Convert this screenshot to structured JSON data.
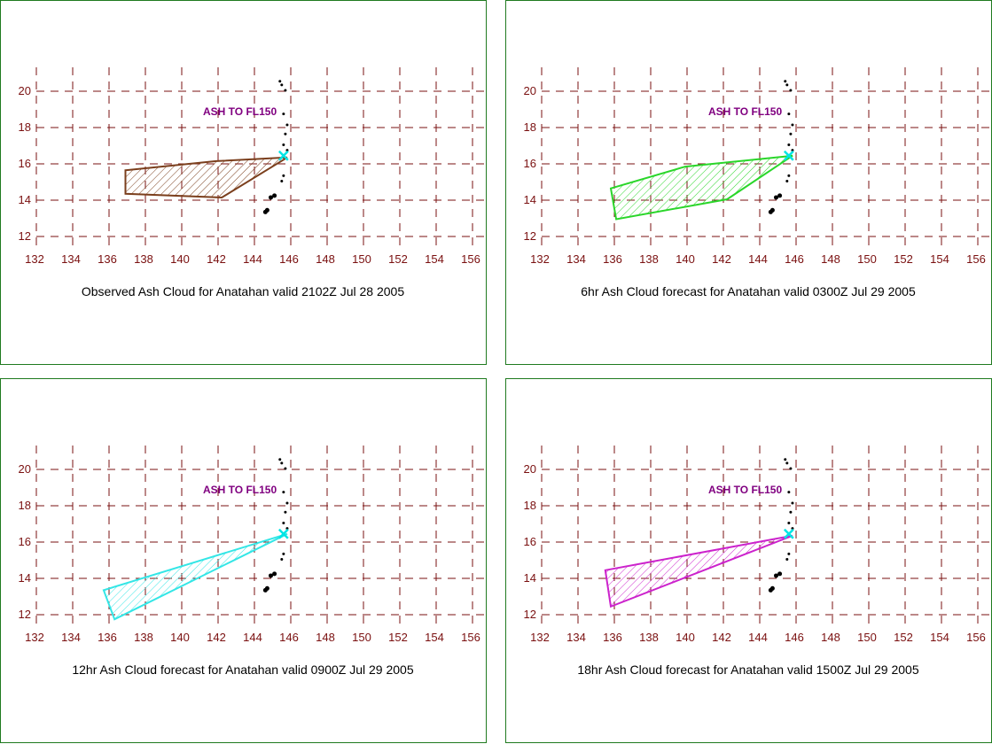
{
  "axes": {
    "lon_ticks": [
      132,
      134,
      136,
      138,
      140,
      142,
      144,
      146,
      148,
      150,
      152,
      154,
      156
    ],
    "lat_ticks": [
      12,
      14,
      16,
      18,
      20
    ],
    "lon_range": [
      132,
      157
    ],
    "lat_range": [
      11.5,
      21
    ],
    "grid": true,
    "grid_color": "#7a1010"
  },
  "volcano": {
    "lon": 145.7,
    "lat": 16.4,
    "marker_color": "#00e5e5",
    "icon": "volcano-x-icon"
  },
  "islands": [
    [
      145.5,
      20.5
    ],
    [
      145.6,
      20.3
    ],
    [
      145.8,
      20.0
    ],
    [
      145.7,
      18.7
    ],
    [
      145.9,
      18.1
    ],
    [
      145.8,
      17.6
    ],
    [
      145.7,
      17.0
    ],
    [
      145.9,
      16.7
    ],
    [
      145.7,
      15.3
    ],
    [
      145.6,
      15.0
    ],
    [
      145.2,
      14.2
    ],
    [
      145.0,
      14.1
    ],
    [
      144.8,
      13.4
    ],
    [
      144.7,
      13.3
    ]
  ],
  "panels": [
    {
      "caption": "Observed Ash Cloud for Anatahan valid 2102Z Jul 28 2005",
      "annotation": "ASH TO FL150",
      "color": "#7b3f1d",
      "polygon": [
        [
          137.0,
          15.6
        ],
        [
          142.0,
          16.1
        ],
        [
          145.9,
          16.3
        ],
        [
          142.3,
          14.1
        ],
        [
          137.0,
          14.3
        ]
      ]
    },
    {
      "caption": "6hr Ash Cloud forecast for Anatahan valid 0300Z Jul 29 2005",
      "annotation": "ASH TO FL150",
      "color": "#2ad62a",
      "polygon": [
        [
          135.9,
          14.6
        ],
        [
          140.0,
          15.8
        ],
        [
          145.9,
          16.4
        ],
        [
          142.3,
          14.0
        ],
        [
          136.2,
          12.9
        ]
      ]
    },
    {
      "caption": "12hr Ash Cloud forecast for Anatahan valid 0900Z Jul 29 2005",
      "annotation": "ASH TO FL150",
      "color": "#33e6e6",
      "polygon": [
        [
          135.8,
          13.3
        ],
        [
          145.9,
          16.4
        ],
        [
          136.4,
          11.7
        ]
      ]
    },
    {
      "caption": "18hr Ash Cloud forecast for Anatahan valid 1500Z Jul 29 2005",
      "annotation": "ASH TO FL150",
      "color": "#cc22cc",
      "polygon": [
        [
          135.6,
          14.4
        ],
        [
          145.9,
          16.3
        ],
        [
          135.9,
          12.4
        ]
      ]
    }
  ]
}
